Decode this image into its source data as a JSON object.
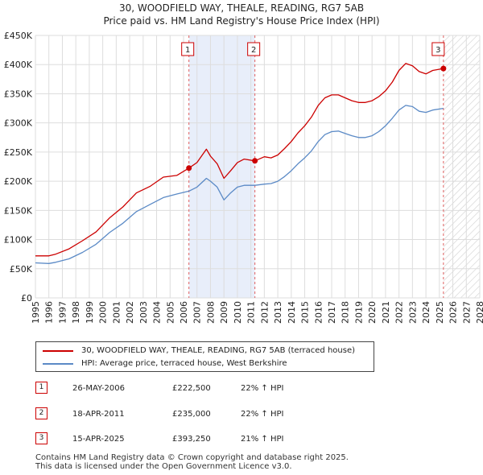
{
  "title_line1": "30, WOODFIELD WAY, THEALE, READING, RG7 5AB",
  "title_line2": "Price paid vs. HM Land Registry's House Price Index (HPI)",
  "chart_data": {
    "type": "line",
    "title": "30, WOODFIELD WAY, THEALE, READING, RG7 5AB — Price paid vs. HM Land Registry's House Price Index (HPI)",
    "xlim": [
      1995,
      2028
    ],
    "ylim": [
      0,
      450000
    ],
    "y_ticks": [
      0,
      50000,
      100000,
      150000,
      200000,
      250000,
      300000,
      350000,
      400000,
      450000
    ],
    "y_tick_labels": [
      "£0",
      "£50K",
      "£100K",
      "£150K",
      "£200K",
      "£250K",
      "£300K",
      "£350K",
      "£400K",
      "£450K"
    ],
    "x_ticks": [
      1995,
      1996,
      1997,
      1998,
      1999,
      2000,
      2001,
      2002,
      2003,
      2004,
      2005,
      2006,
      2007,
      2008,
      2009,
      2010,
      2011,
      2012,
      2013,
      2014,
      2015,
      2016,
      2017,
      2018,
      2019,
      2020,
      2021,
      2022,
      2023,
      2024,
      2025,
      2026,
      2027,
      2028
    ],
    "x_tick_labels": [
      "1995",
      "1996",
      "1997",
      "1998",
      "1999",
      "2000",
      "2001",
      "2002",
      "2003",
      "2004",
      "2005",
      "2006",
      "2007",
      "2008",
      "2009",
      "2010",
      "2011",
      "2012",
      "2013",
      "2014",
      "2015",
      "2016",
      "2017",
      "2018",
      "2019",
      "2020",
      "2021",
      "2022",
      "2023",
      "2024",
      "2025",
      "2026",
      "2027",
      "2028"
    ],
    "grid": true,
    "shaded_range": [
      2006.4,
      2011.3
    ],
    "projection_start": 2025.3,
    "series": [
      {
        "name": "30, WOODFIELD WAY, THEALE, READING, RG7 5AB (terraced house)",
        "color": "#cc0000",
        "points": [
          [
            1995.0,
            72000
          ],
          [
            1996.0,
            72000
          ],
          [
            1996.5,
            75000
          ],
          [
            1997.5,
            84000
          ],
          [
            1998.5,
            98000
          ],
          [
            1999.5,
            113000
          ],
          [
            2000.5,
            137000
          ],
          [
            2001.5,
            156000
          ],
          [
            2002.5,
            180000
          ],
          [
            2003.5,
            191000
          ],
          [
            2004.5,
            207000
          ],
          [
            2005.5,
            210000
          ],
          [
            2006.4,
            222500
          ],
          [
            2007.0,
            232000
          ],
          [
            2007.7,
            255000
          ],
          [
            2008.0,
            243000
          ],
          [
            2008.5,
            230000
          ],
          [
            2009.0,
            205000
          ],
          [
            2009.5,
            218000
          ],
          [
            2010.0,
            232000
          ],
          [
            2010.5,
            238000
          ],
          [
            2011.3,
            235000
          ],
          [
            2012.0,
            242000
          ],
          [
            2012.5,
            240000
          ],
          [
            2013.0,
            245000
          ],
          [
            2013.5,
            256000
          ],
          [
            2014.0,
            268000
          ],
          [
            2014.5,
            283000
          ],
          [
            2015.0,
            295000
          ],
          [
            2015.5,
            310000
          ],
          [
            2016.0,
            330000
          ],
          [
            2016.5,
            343000
          ],
          [
            2017.0,
            348000
          ],
          [
            2017.5,
            348000
          ],
          [
            2018.0,
            343000
          ],
          [
            2018.5,
            338000
          ],
          [
            2019.0,
            335000
          ],
          [
            2019.5,
            335000
          ],
          [
            2020.0,
            338000
          ],
          [
            2020.5,
            345000
          ],
          [
            2021.0,
            355000
          ],
          [
            2021.5,
            370000
          ],
          [
            2022.0,
            390000
          ],
          [
            2022.5,
            402000
          ],
          [
            2023.0,
            398000
          ],
          [
            2023.5,
            388000
          ],
          [
            2024.0,
            384000
          ],
          [
            2024.5,
            390000
          ],
          [
            2025.3,
            393250
          ]
        ]
      },
      {
        "name": "HPI: Average price, terraced house, West Berkshire",
        "color": "#5b8ac6",
        "points": [
          [
            1995.0,
            60000
          ],
          [
            1996.0,
            59000
          ],
          [
            1996.5,
            61000
          ],
          [
            1997.5,
            67000
          ],
          [
            1998.5,
            78000
          ],
          [
            1999.5,
            92000
          ],
          [
            2000.5,
            112000
          ],
          [
            2001.5,
            128000
          ],
          [
            2002.5,
            148000
          ],
          [
            2003.5,
            160000
          ],
          [
            2004.5,
            172000
          ],
          [
            2005.5,
            178000
          ],
          [
            2006.4,
            183000
          ],
          [
            2007.0,
            190000
          ],
          [
            2007.7,
            205000
          ],
          [
            2008.0,
            200000
          ],
          [
            2008.5,
            190000
          ],
          [
            2009.0,
            168000
          ],
          [
            2009.5,
            180000
          ],
          [
            2010.0,
            190000
          ],
          [
            2010.5,
            193000
          ],
          [
            2011.3,
            193000
          ],
          [
            2012.0,
            195000
          ],
          [
            2012.5,
            196000
          ],
          [
            2013.0,
            200000
          ],
          [
            2013.5,
            208000
          ],
          [
            2014.0,
            218000
          ],
          [
            2014.5,
            230000
          ],
          [
            2015.0,
            240000
          ],
          [
            2015.5,
            252000
          ],
          [
            2016.0,
            268000
          ],
          [
            2016.5,
            280000
          ],
          [
            2017.0,
            285000
          ],
          [
            2017.5,
            286000
          ],
          [
            2018.0,
            282000
          ],
          [
            2018.5,
            278000
          ],
          [
            2019.0,
            275000
          ],
          [
            2019.5,
            275000
          ],
          [
            2020.0,
            278000
          ],
          [
            2020.5,
            285000
          ],
          [
            2021.0,
            295000
          ],
          [
            2021.5,
            308000
          ],
          [
            2022.0,
            322000
          ],
          [
            2022.5,
            330000
          ],
          [
            2023.0,
            328000
          ],
          [
            2023.5,
            320000
          ],
          [
            2024.0,
            318000
          ],
          [
            2024.5,
            322000
          ],
          [
            2025.3,
            325000
          ]
        ]
      }
    ],
    "sales": [
      {
        "label": "1",
        "x": 2006.4,
        "y": 222500
      },
      {
        "label": "2",
        "x": 2011.3,
        "y": 235000
      },
      {
        "label": "3",
        "x": 2025.3,
        "y": 393250
      }
    ]
  },
  "legend": {
    "property_label": "30, WOODFIELD WAY, THEALE, READING, RG7 5AB (terraced house)",
    "hpi_label": "HPI: Average price, terraced house, West Berkshire",
    "property_color": "#cc0000",
    "hpi_color": "#5b8ac6"
  },
  "sales_table": [
    {
      "num": "1",
      "date": "26-MAY-2006",
      "price": "£222,500",
      "hpi": "22% ↑ HPI"
    },
    {
      "num": "2",
      "date": "18-APR-2011",
      "price": "£235,000",
      "hpi": "22% ↑ HPI"
    },
    {
      "num": "3",
      "date": "15-APR-2025",
      "price": "£393,250",
      "hpi": "21% ↑ HPI"
    }
  ],
  "footer": {
    "line1": "Contains HM Land Registry data © Crown copyright and database right 2025.",
    "line2": "This data is licensed under the Open Government Licence v3.0."
  }
}
